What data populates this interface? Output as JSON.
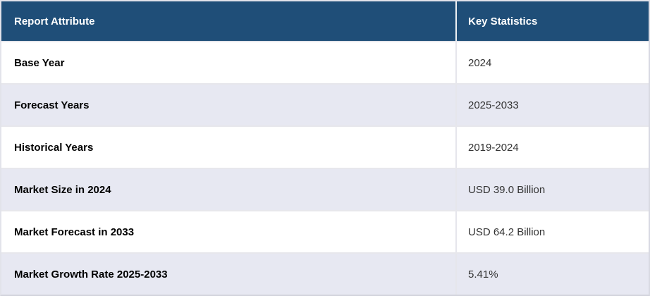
{
  "chart_data": {
    "type": "table",
    "columns": [
      "Report Attribute",
      "Key Statistics"
    ],
    "rows": [
      [
        "Base Year",
        "2024"
      ],
      [
        "Forecast Years",
        "2025-2033"
      ],
      [
        "Historical Years",
        "2019-2024"
      ],
      [
        "Market Size in 2024",
        "USD 39.0 Billion"
      ],
      [
        "Market Forecast in 2033",
        "USD 64.2 Billion"
      ],
      [
        "Market Growth Rate 2025-2033",
        "5.41%"
      ]
    ]
  },
  "colors": {
    "header_background": "#1f4e78",
    "header_text": "#ffffff",
    "alt_row_background": "#e7e8f2",
    "row_background": "#ffffff",
    "attribute_text": "#000000",
    "value_text": "#333333",
    "border": "#e2e3ea"
  }
}
